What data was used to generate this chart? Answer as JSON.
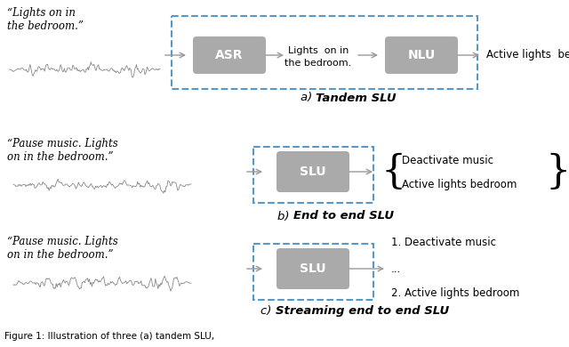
{
  "fig_width": 6.4,
  "fig_height": 3.9,
  "bg_color": "#ffffff",
  "box_fill": "#aaaaaa",
  "box_text_color": "#ffffff",
  "dashed_rect_color": "#5599cc",
  "arrow_color": "#999999",
  "section_a": {
    "label_prefix": "a) ",
    "label_bold": "Tandem SLU",
    "quote_text": "“Lights on in\nthe bedroom.”",
    "asr_label": "ASR",
    "middle_text": "Lights  on in\nthe bedroom.",
    "nlu_label": "NLU",
    "output_text": "Active lights  bedroom"
  },
  "section_b": {
    "label_prefix": "b) ",
    "label_bold": "End to end SLU",
    "quote_text": "“Pause music. Lights\non in the bedroom.”",
    "slu_label": "SLU",
    "output_lines": [
      "Deactivate music",
      "Active lights bedroom"
    ]
  },
  "section_c": {
    "label_prefix": "c) ",
    "label_bold": "Streaming end to end SLU",
    "quote_text": "“Pause music. Lights\non in the bedroom.”",
    "slu_label": "SLU",
    "output_lines": [
      "1. Deactivate music",
      "...",
      "2. Active lights bedroom"
    ]
  }
}
